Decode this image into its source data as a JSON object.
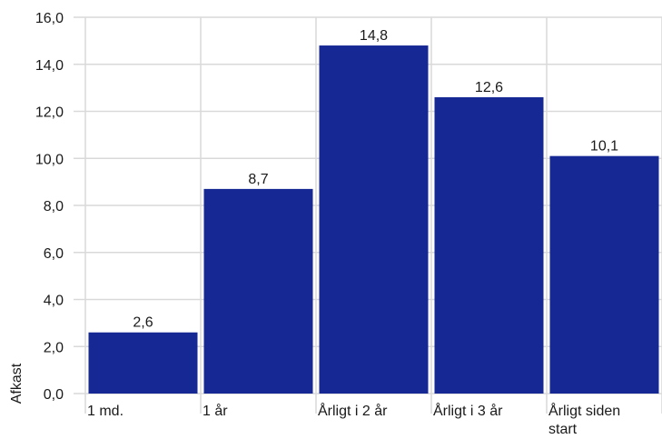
{
  "chart_data": {
    "type": "bar",
    "ylabel": "Afkast",
    "xlabel": "",
    "title": "",
    "categories": [
      [
        "1 md."
      ],
      [
        "1 år"
      ],
      [
        "Årligt i 2 år"
      ],
      [
        "Årligt i 3 år"
      ],
      [
        "Årligt siden",
        "start"
      ]
    ],
    "values": [
      2.6,
      8.7,
      14.8,
      12.6,
      10.1
    ],
    "data_labels": [
      "2,6",
      "8,7",
      "14,8",
      "12,6",
      "10,1"
    ],
    "ylim": [
      0,
      16
    ],
    "y_ticks": [
      "0,0",
      "2,0",
      "4,0",
      "6,0",
      "8,0",
      "10,0",
      "12,0",
      "14,0",
      "16,0"
    ],
    "grid": true,
    "legend": "none",
    "colors": {
      "bar": "#162893",
      "grid": "#d9d9d9",
      "text": "#1a1a1a"
    }
  }
}
